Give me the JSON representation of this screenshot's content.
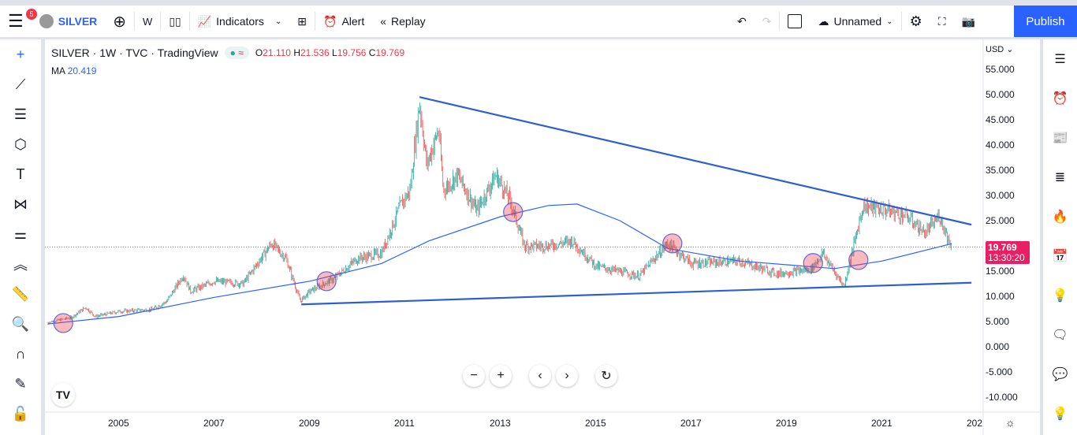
{
  "toolbar": {
    "menu_badge": "5",
    "symbol": "SILVER",
    "interval": "W",
    "indicators": "Indicators",
    "alert": "Alert",
    "replay": "Replay",
    "layout_name": "Unnamed",
    "publish": "Publish"
  },
  "legend": {
    "title": "SILVER · 1W · TVC · TradingView",
    "open_label": "O",
    "open": "21.110",
    "high_label": "H",
    "high": "21.536",
    "low_label": "L",
    "low": "19.756",
    "close_label": "C",
    "close": "19.769",
    "ma_label": "MA",
    "ma_value": "20.419"
  },
  "price_scale": {
    "currency": "USD",
    "ticks": [
      "55.000",
      "50.000",
      "45.000",
      "40.000",
      "35.000",
      "30.000",
      "25.000",
      "20.000",
      "15.000",
      "10.000",
      "5.000",
      "0.000",
      "-5.000",
      "-10.000"
    ],
    "last_price": "19.769",
    "countdown": "13:30:20"
  },
  "time_scale": {
    "ticks": [
      "2005",
      "2007",
      "2009",
      "2011",
      "2013",
      "2015",
      "2017",
      "2019",
      "2021",
      "202"
    ]
  },
  "colors": {
    "up": "#26a69a",
    "down": "#ef5350",
    "ma": "#2962ff",
    "trendline": "#2e5fd0",
    "accent": "#2962ff",
    "last_price": "#e91e63"
  },
  "chart_data": {
    "type": "candlestick",
    "ylim": [
      -12,
      58
    ],
    "xlim": [
      2003.45,
      2023.13
    ],
    "price": [
      [
        2003.5,
        4.8
      ],
      [
        2004.0,
        5.8
      ],
      [
        2004.3,
        7.8
      ],
      [
        2004.5,
        6.0
      ],
      [
        2005.0,
        7.0
      ],
      [
        2005.7,
        7.4
      ],
      [
        2006.0,
        9.0
      ],
      [
        2006.35,
        14.2
      ],
      [
        2006.5,
        11.0
      ],
      [
        2007.0,
        13.0
      ],
      [
        2007.6,
        12.5
      ],
      [
        2008.2,
        20.5
      ],
      [
        2008.5,
        17.5
      ],
      [
        2008.8,
        9.0
      ],
      [
        2009.0,
        11.0
      ],
      [
        2009.5,
        13.5
      ],
      [
        2010.0,
        17.5
      ],
      [
        2010.5,
        18.5
      ],
      [
        2010.9,
        28.0
      ],
      [
        2011.1,
        31.0
      ],
      [
        2011.3,
        48.5
      ],
      [
        2011.45,
        36
      ],
      [
        2011.7,
        43
      ],
      [
        2011.8,
        31
      ],
      [
        2012.1,
        34
      ],
      [
        2012.5,
        27
      ],
      [
        2012.9,
        34
      ],
      [
        2013.2,
        29
      ],
      [
        2013.5,
        20
      ],
      [
        2014.0,
        20
      ],
      [
        2014.5,
        21
      ],
      [
        2015.0,
        16
      ],
      [
        2015.9,
        14
      ],
      [
        2016.5,
        20.5
      ],
      [
        2017.0,
        16.5
      ],
      [
        2018.0,
        17
      ],
      [
        2018.8,
        14.5
      ],
      [
        2019.5,
        15.3
      ],
      [
        2019.75,
        18.5
      ],
      [
        2020.2,
        12
      ],
      [
        2020.6,
        28
      ],
      [
        2021.1,
        27
      ],
      [
        2021.5,
        26
      ],
      [
        2021.9,
        22.5
      ],
      [
        2022.2,
        26
      ],
      [
        2022.45,
        19.769
      ]
    ],
    "moving_average": [
      [
        2003.5,
        4.5
      ],
      [
        2005,
        6.0
      ],
      [
        2007,
        9.8
      ],
      [
        2009,
        13.0
      ],
      [
        2010.5,
        16.5
      ],
      [
        2011.5,
        21
      ],
      [
        2013,
        25.8
      ],
      [
        2014,
        28.0
      ],
      [
        2014.6,
        28.3
      ],
      [
        2015.5,
        25
      ],
      [
        2016.5,
        19.5
      ],
      [
        2018,
        17
      ],
      [
        2020,
        15.5
      ],
      [
        2021,
        17
      ],
      [
        2022.45,
        20.419
      ]
    ],
    "trendlines": [
      [
        [
          2011.3,
          49.5
        ],
        [
          2022.87,
          24.2
        ]
      ],
      [
        [
          2008.82,
          8.4
        ],
        [
          2022.87,
          12.7
        ]
      ]
    ],
    "highlighted_points": [
      [
        2003.83,
        4.7
      ],
      [
        2009.35,
        13
      ],
      [
        2013.26,
        26.7
      ],
      [
        2016.6,
        20.5
      ],
      [
        2019.55,
        16.6
      ],
      [
        2020.5,
        17.2
      ]
    ]
  }
}
